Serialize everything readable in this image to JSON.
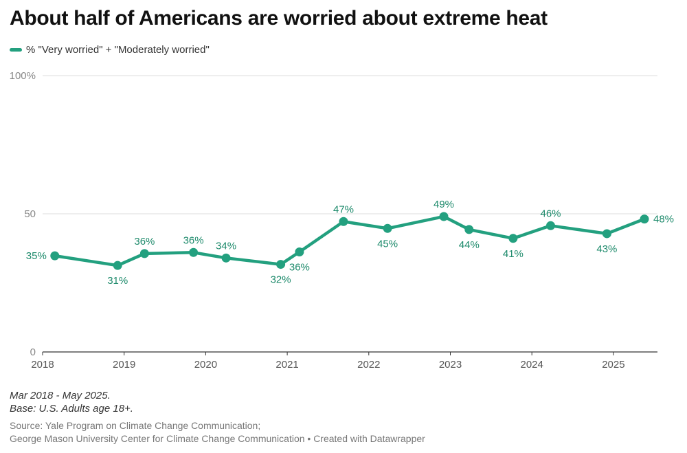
{
  "title": "About half of Americans are worried about extreme heat",
  "legend": {
    "label": "% \"Very worried\" + \"Moderately worried\""
  },
  "colors": {
    "series": "#23a07f",
    "label": "#1d8a6b",
    "grid": "#dddddd"
  },
  "notes": [
    "Mar 2018 - May 2025.",
    "Base: U.S. Adults age 18+."
  ],
  "source": [
    "Source: Yale Program on Climate Change Communication;",
    "George Mason University Center for Climate Change Communication • Created with Datawrapper"
  ],
  "chart_data": {
    "type": "line",
    "title": "About half of Americans are worried about extreme heat",
    "ylim": [
      0,
      100
    ],
    "yticks": [
      {
        "value": 0,
        "label": "0"
      },
      {
        "value": 50,
        "label": "50"
      },
      {
        "value": 100,
        "label": "100%"
      }
    ],
    "xlim": [
      2018,
      2025.54
    ],
    "xticks": [
      2018,
      2019,
      2020,
      2021,
      2022,
      2023,
      2024,
      2025
    ],
    "series": [
      {
        "name": "% \"Very worried\" + \"Moderately worried\"",
        "points": [
          {
            "x": 2018.15,
            "y": 34.8,
            "label": "35%",
            "pos": "left"
          },
          {
            "x": 2018.92,
            "y": 31.3,
            "label": "31%",
            "pos": "below"
          },
          {
            "x": 2019.25,
            "y": 35.6,
            "label": "36%",
            "pos": "above"
          },
          {
            "x": 2019.85,
            "y": 36.0,
            "label": "36%",
            "pos": "above"
          },
          {
            "x": 2020.25,
            "y": 34.0,
            "label": "34%",
            "pos": "above"
          },
          {
            "x": 2020.92,
            "y": 31.7,
            "label": "32%",
            "pos": "below"
          },
          {
            "x": 2021.15,
            "y": 36.2,
            "label": "36%",
            "pos": "below"
          },
          {
            "x": 2021.69,
            "y": 47.2,
            "label": "47%",
            "pos": "above"
          },
          {
            "x": 2022.23,
            "y": 44.7,
            "label": "45%",
            "pos": "below"
          },
          {
            "x": 2022.92,
            "y": 49.0,
            "label": "49%",
            "pos": "above"
          },
          {
            "x": 2023.23,
            "y": 44.3,
            "label": "44%",
            "pos": "below"
          },
          {
            "x": 2023.77,
            "y": 41.1,
            "label": "41%",
            "pos": "below"
          },
          {
            "x": 2024.23,
            "y": 45.7,
            "label": "46%",
            "pos": "above"
          },
          {
            "x": 2024.92,
            "y": 42.8,
            "label": "43%",
            "pos": "below"
          },
          {
            "x": 2025.38,
            "y": 48.1,
            "label": "48%",
            "pos": "right"
          }
        ]
      }
    ]
  }
}
